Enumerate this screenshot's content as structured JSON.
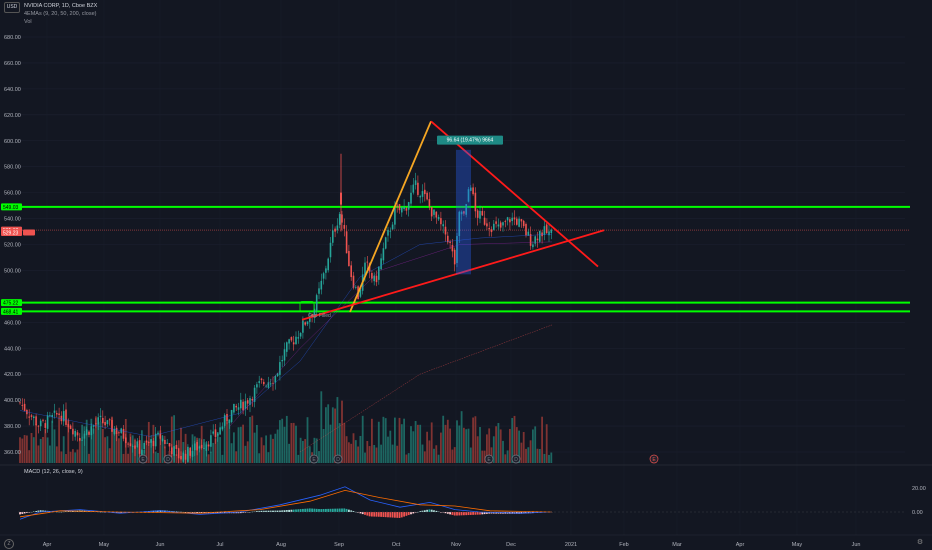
{
  "header": {
    "symbol_line": "NVIDIA CORP, 1D, Cboe BZX",
    "ema_line": "4EMAs (9, 20, 50, 200, close)",
    "vol_line": "Vol",
    "currency": "USD"
  },
  "macd_label": "MACD (12, 26, close, 9)",
  "colors": {
    "bg": "#131722",
    "green": "#00ff00",
    "red": "#ff1a1a",
    "orange": "#f5a623",
    "up": "#26a69a",
    "down": "#ef5350",
    "grid": "#1e2230"
  },
  "chart_data": {
    "type": "candlestick",
    "price_axis": {
      "min": 350,
      "max": 690,
      "ticks": [
        680,
        660,
        640,
        620,
        600,
        580,
        560,
        540,
        520,
        500,
        460,
        440,
        420,
        400,
        380,
        360
      ]
    },
    "price_badges": [
      {
        "label": "549.03",
        "value": 549.03,
        "color": "#00ff00"
      },
      {
        "label": "531.13",
        "value": 531.13,
        "color": "#ef5350"
      },
      {
        "label": "529.23",
        "value": 529.23,
        "color": "#ef5350"
      },
      {
        "label": "475.22",
        "value": 475.22,
        "color": "#00ff00"
      },
      {
        "label": "468.41",
        "value": 468.41,
        "color": "#00ff00"
      }
    ],
    "month_labels": [
      "Apr",
      "May",
      "Jun",
      "Jul",
      "Aug",
      "Sep",
      "Oct",
      "Nov",
      "Dec",
      "2021",
      "Feb",
      "Mar",
      "Apr",
      "May",
      "Jun"
    ],
    "horizontal_levels": [
      549.03,
      475.22,
      468.41
    ],
    "range_label": "96.64 (19.47%) 9664",
    "gap_label": "Gap Filled",
    "macd_axis_ticks": [
      "20.00",
      "0.00"
    ],
    "event_markers": [
      "E",
      "D",
      "E",
      "D",
      "E",
      "D",
      "E"
    ]
  }
}
